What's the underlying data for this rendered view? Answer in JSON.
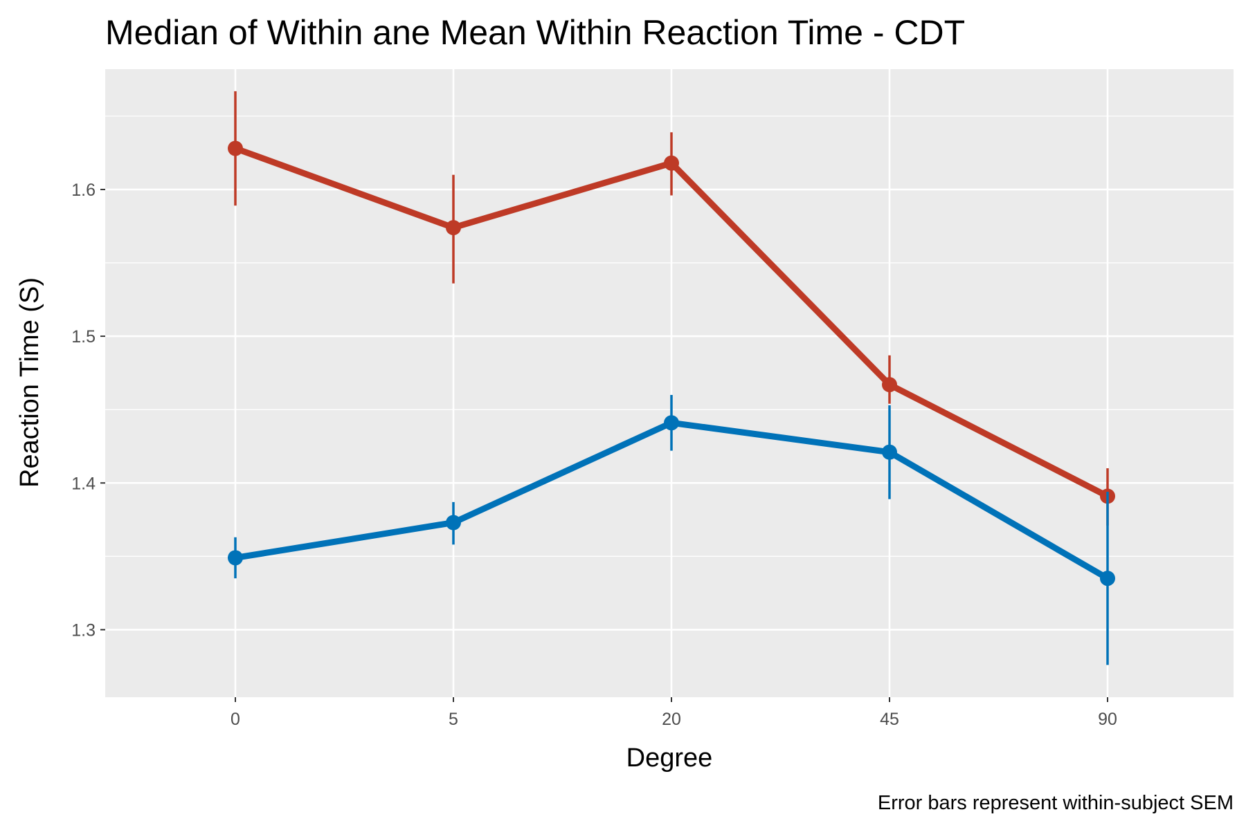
{
  "chart_data": {
    "type": "line",
    "title": "Median of Within ane Mean Within Reaction Time - CDT",
    "xlabel": "Degree",
    "ylabel": "Reaction Time (S)",
    "caption": "Error bars represent within-subject SEM",
    "categories": [
      "0",
      "5",
      "20",
      "45",
      "90"
    ],
    "y_ticks": [
      "1.3",
      "1.4",
      "1.5",
      "1.6"
    ],
    "ylim": [
      1.254,
      1.682
    ],
    "grid": true,
    "legend": "none",
    "series": [
      {
        "color": "#BE3A26",
        "values": [
          1.628,
          1.574,
          1.618,
          1.467,
          1.391
        ],
        "err_low": [
          1.589,
          1.536,
          1.596,
          1.454,
          1.371
        ],
        "err_high": [
          1.667,
          1.61,
          1.639,
          1.487,
          1.41
        ]
      },
      {
        "color": "#0072B8",
        "values": [
          1.349,
          1.373,
          1.441,
          1.421,
          1.335
        ],
        "err_low": [
          1.335,
          1.358,
          1.422,
          1.389,
          1.276
        ],
        "err_high": [
          1.363,
          1.387,
          1.46,
          1.453,
          1.394
        ]
      }
    ],
    "colors": {
      "panel_background": "#EBEBEB",
      "grid": "#FFFFFF",
      "tick_label": "#4D4D4D"
    }
  }
}
